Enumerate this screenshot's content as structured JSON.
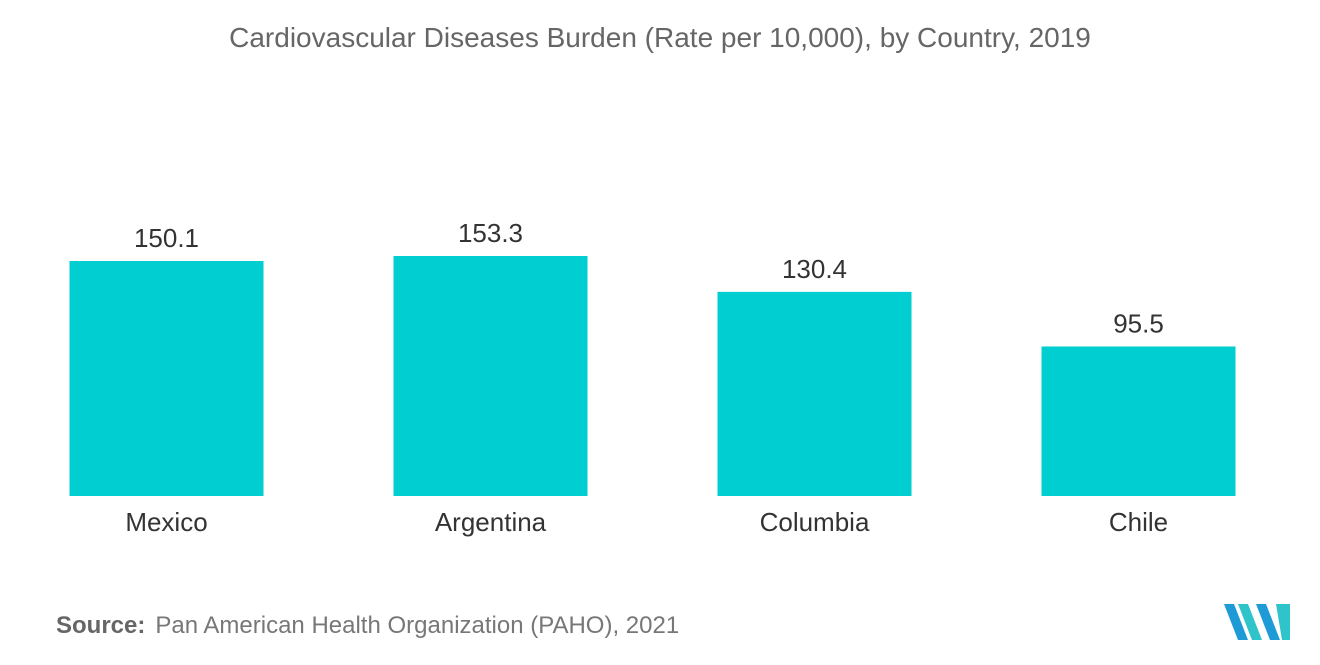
{
  "chart_data": {
    "type": "bar",
    "title": "Cardiovascular Diseases Burden (Rate per 10,000), by Country, 2019",
    "categories": [
      "Mexico",
      "Argentina",
      "Columbia",
      "Chile"
    ],
    "values": [
      150.1,
      153.3,
      130.4,
      95.5
    ],
    "value_labels": [
      "150.1",
      "153.3",
      "130.4",
      "95.5"
    ],
    "xlabel": "",
    "ylabel": "",
    "ylim": [
      0,
      153.3
    ],
    "grid": false,
    "legend": "none",
    "bar_color": "#00CED1"
  },
  "source": {
    "label": "Source:",
    "text": "Pan American Health Organization (PAHO), 2021"
  },
  "logo": {
    "icon": "mordor-intelligence-logo-icon",
    "colors": [
      "#1E9BD7",
      "#2EC4C9"
    ]
  }
}
